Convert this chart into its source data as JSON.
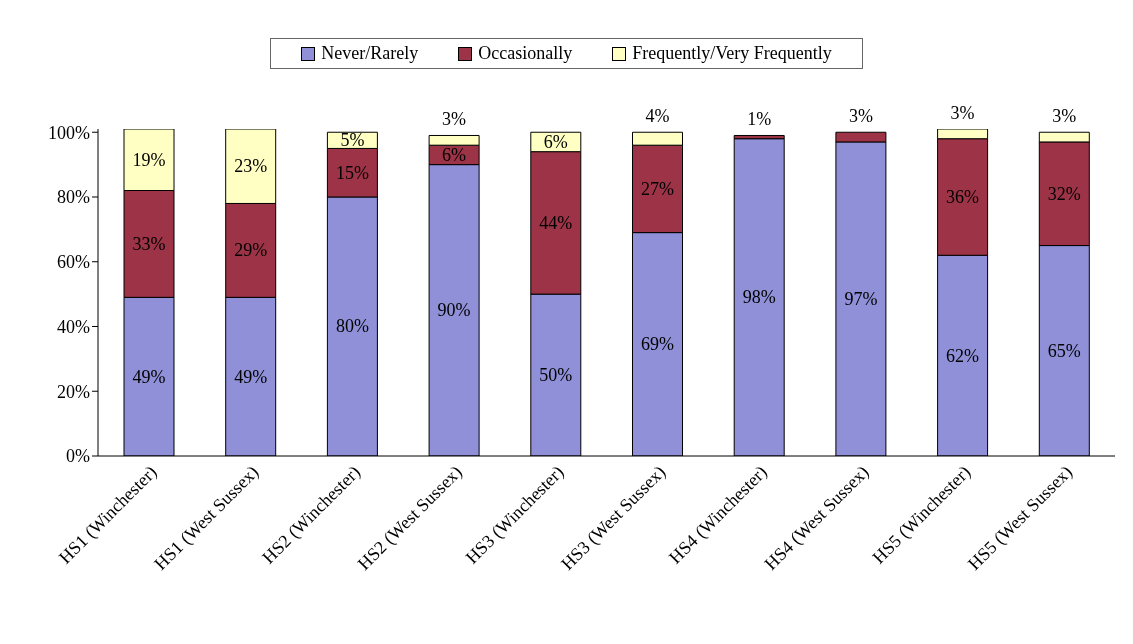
{
  "chart_data": {
    "type": "bar",
    "stacked": true,
    "categories": [
      "HS1 (Winchester)",
      "HS1 (West Sussex)",
      "HS2 (Winchester)",
      "HS2 (West Sussex)",
      "HS3 (Winchester)",
      "HS3 (West Sussex)",
      "HS4 (Winchester)",
      "HS4 (West Sussex)",
      "HS5 (Winchester)",
      "HS5 (West Sussex)"
    ],
    "series": [
      {
        "name": "Never/Rarely",
        "color": "#8f90d8",
        "values": [
          49,
          49,
          80,
          90,
          50,
          69,
          98,
          97,
          62,
          65
        ],
        "value_labels": [
          "49%",
          "49%",
          "80%",
          "90%",
          "50%",
          "69%",
          "98%",
          "97%",
          "62%",
          "65%"
        ]
      },
      {
        "name": "Occasionally",
        "color": "#9c3346",
        "values": [
          33,
          29,
          15,
          6,
          44,
          27,
          1,
          3,
          36,
          32
        ],
        "value_labels": [
          "33%",
          "29%",
          "15%",
          "6%",
          "44%",
          "27%",
          "1%",
          "3%",
          "36%",
          "32%"
        ]
      },
      {
        "name": "Frequently/Very Frequently",
        "color": "#ffffc4",
        "values": [
          19,
          23,
          5,
          3,
          6,
          4,
          null,
          null,
          3,
          3
        ],
        "value_labels": [
          "19%",
          "23%",
          "5%",
          "3%",
          "6%",
          "4%",
          null,
          null,
          "3%",
          "3%"
        ]
      }
    ],
    "ylim": [
      0,
      101
    ],
    "yticks": [
      {
        "value": 0,
        "label": "0%"
      },
      {
        "value": 20,
        "label": "20%"
      },
      {
        "value": 40,
        "label": "40%"
      },
      {
        "value": 60,
        "label": "60%"
      },
      {
        "value": 80,
        "label": "80%"
      },
      {
        "value": 100,
        "label": "100%"
      }
    ],
    "grid": false,
    "legend": "top"
  }
}
